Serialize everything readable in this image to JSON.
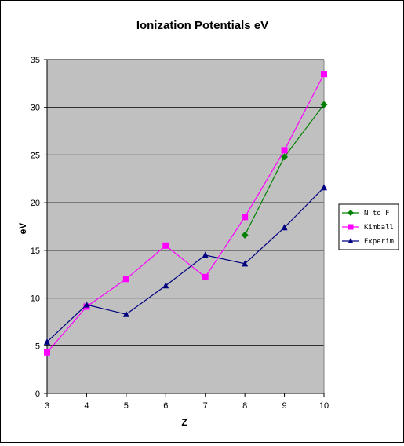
{
  "chart_data": {
    "type": "line",
    "title": "Ionization Potentials eV",
    "xlabel": "Z",
    "ylabel": "eV",
    "x": [
      3,
      4,
      5,
      6,
      7,
      8,
      9,
      10
    ],
    "xlim": [
      3,
      10
    ],
    "ylim": [
      0,
      35
    ],
    "yticks": [
      0,
      5,
      10,
      15,
      20,
      25,
      30,
      35
    ],
    "xticks": [
      3,
      4,
      5,
      6,
      7,
      8,
      9,
      10
    ],
    "grid": true,
    "plot_background": "#c0c0c0",
    "legend_position": "right",
    "series": [
      {
        "name": "N to F",
        "color": "#008000",
        "marker": "diamond",
        "x": [
          8,
          9,
          10
        ],
        "values": [
          16.6,
          24.8,
          30.3
        ]
      },
      {
        "name": "Kimball",
        "color": "#ff00ff",
        "marker": "square",
        "x": [
          3,
          4,
          5,
          6,
          7,
          8,
          9,
          10
        ],
        "values": [
          4.3,
          9.1,
          12.0,
          15.5,
          12.2,
          18.5,
          25.5,
          33.5
        ]
      },
      {
        "name": "Experim",
        "color": "#000080",
        "marker": "triangle",
        "x": [
          3,
          4,
          5,
          6,
          7,
          8,
          9,
          10
        ],
        "values": [
          5.4,
          9.3,
          8.3,
          11.3,
          14.5,
          13.6,
          17.4,
          21.6
        ]
      }
    ]
  }
}
